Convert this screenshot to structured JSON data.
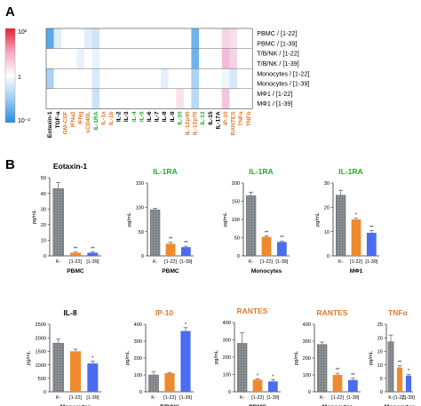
{
  "panel_a": {
    "label": "A",
    "scale": {
      "top": "10²",
      "mid": "1",
      "bottom": "10⁻²"
    },
    "rows": [
      "PBMC / [1-22]",
      "PBMC / [1-39]",
      "T/B/NK / [1-22]",
      "T/B/NK / [1-39]",
      "Monocytes / [1-22]",
      "Monocytes / [1-39]",
      "MΦ1 / [1-22]",
      "MΦ1 / [1-39]"
    ],
    "columns": [
      {
        "name": "Eotaxin-1",
        "color": "#000000"
      },
      {
        "name": "TGF-a",
        "color": "#000000"
      },
      {
        "name": "GM-CSF",
        "color": "#e07b2a"
      },
      {
        "name": "IFNa2",
        "color": "#e07b2a"
      },
      {
        "name": "IFNg",
        "color": "#e07b2a"
      },
      {
        "name": "sCD40L",
        "color": "#e07b2a"
      },
      {
        "name": "IL-1RA",
        "color": "#2aa62a"
      },
      {
        "name": "IL-1a",
        "color": "#e07b2a"
      },
      {
        "name": "IL-1b",
        "color": "#e07b2a"
      },
      {
        "name": "IL-2",
        "color": "#000000"
      },
      {
        "name": "IL-3",
        "color": "#000000"
      },
      {
        "name": "IL-4",
        "color": "#2aa62a"
      },
      {
        "name": "IL-5",
        "color": "#2aa62a"
      },
      {
        "name": "IL-6",
        "color": "#000000"
      },
      {
        "name": "IL-7",
        "color": "#000000"
      },
      {
        "name": "IL-8",
        "color": "#000000"
      },
      {
        "name": "IL-9",
        "color": "#000000"
      },
      {
        "name": "IL-10",
        "color": "#2aa62a"
      },
      {
        "name": "IL-12p40",
        "color": "#e07b2a"
      },
      {
        "name": "IL-12p70",
        "color": "#e07b2a"
      },
      {
        "name": "IL-13",
        "color": "#2aa62a"
      },
      {
        "name": "IL-15",
        "color": "#000000"
      },
      {
        "name": "IL-17A",
        "color": "#000000"
      },
      {
        "name": "IP-10",
        "color": "#e07b2a"
      },
      {
        "name": "RANTES",
        "color": "#e07b2a"
      },
      {
        "name": "TNFa",
        "color": "#e07b2a"
      },
      {
        "name": "TNFb",
        "color": "#e07b2a"
      }
    ],
    "heat": [
      [
        "#5aa9ea",
        "#dceefb",
        "#ffffff",
        "#ffffff",
        "#ffffff",
        "#dfeefa",
        "#cfe6f8",
        "#ffffff",
        "#ffffff",
        "#ffffff",
        "#ffffff",
        "#ffffff",
        "#ffffff",
        "#ffffff",
        "#ffffff",
        "#ffffff",
        "#ffffff",
        "#ffffff",
        "#ffffff",
        "#6fb3ec",
        "#ffffff",
        "#ffffff",
        "#ffffff",
        "#f6d4e6",
        "#f8dfeb",
        "#ffffff",
        "#ffffff"
      ],
      [
        "#5aa9ea",
        "#dceefb",
        "#ffffff",
        "#ffffff",
        "#ffffff",
        "#dfeefa",
        "#cfe6f8",
        "#ffffff",
        "#ffffff",
        "#ffffff",
        "#ffffff",
        "#ffffff",
        "#ffffff",
        "#ffffff",
        "#ffffff",
        "#ffffff",
        "#ffffff",
        "#ffffff",
        "#ffffff",
        "#6fb3ec",
        "#ffffff",
        "#ffffff",
        "#ffffff",
        "#f6d4e6",
        "#f8dfeb",
        "#ffffff",
        "#ffffff"
      ],
      [
        "#ffffff",
        "#ffffff",
        "#ffffff",
        "#ffffff",
        "#e7f2fb",
        "#ffffff",
        "#e9f3fb",
        "#ffffff",
        "#ffffff",
        "#ffffff",
        "#ffffff",
        "#ffffff",
        "#ffffff",
        "#ffffff",
        "#ffffff",
        "#ffffff",
        "#ffffff",
        "#ffffff",
        "#ffffff",
        "#6fb3ec",
        "#ffffff",
        "#ffffff",
        "#ffffff",
        "#f2bcd8",
        "#f6d2e4",
        "#ffffff",
        "#ffffff"
      ],
      [
        "#ffffff",
        "#ffffff",
        "#ffffff",
        "#ffffff",
        "#e7f2fb",
        "#ffffff",
        "#e9f3fb",
        "#ffffff",
        "#ffffff",
        "#ffffff",
        "#ffffff",
        "#ffffff",
        "#ffffff",
        "#ffffff",
        "#ffffff",
        "#ffffff",
        "#ffffff",
        "#ffffff",
        "#ffffff",
        "#6fb3ec",
        "#ffffff",
        "#ffffff",
        "#ffffff",
        "#f2bcd8",
        "#f6d2e4",
        "#ffffff",
        "#ffffff"
      ],
      [
        "#a9d2f3",
        "#ffffff",
        "#ffffff",
        "#ffffff",
        "#ffffff",
        "#ffffff",
        "#d7eaf9",
        "#ffffff",
        "#ffffff",
        "#ffffff",
        "#ffffff",
        "#ffffff",
        "#ffffff",
        "#ffffff",
        "#ffffff",
        "#e3f0fb",
        "#ffffff",
        "#ffffff",
        "#ffffff",
        "#a9d2f3",
        "#ffffff",
        "#ffffff",
        "#ffffff",
        "#eef6fc",
        "#d4e8f8",
        "#ffffff",
        "#ffffff"
      ],
      [
        "#a9d2f3",
        "#ffffff",
        "#ffffff",
        "#ffffff",
        "#ffffff",
        "#ffffff",
        "#d7eaf9",
        "#ffffff",
        "#ffffff",
        "#ffffff",
        "#ffffff",
        "#ffffff",
        "#ffffff",
        "#ffffff",
        "#ffffff",
        "#e3f0fb",
        "#ffffff",
        "#ffffff",
        "#ffffff",
        "#a9d2f3",
        "#ffffff",
        "#ffffff",
        "#ffffff",
        "#eef6fc",
        "#d4e8f8",
        "#ffffff",
        "#ffffff"
      ],
      [
        "#ffffff",
        "#ffffff",
        "#ffffff",
        "#ffffff",
        "#ffffff",
        "#ffffff",
        "#c8e2f7",
        "#ffffff",
        "#ffffff",
        "#ffffff",
        "#ffffff",
        "#ffffff",
        "#ffffff",
        "#ffffff",
        "#ffffff",
        "#ffffff",
        "#ffffff",
        "#f9e2ee",
        "#ffffff",
        "#b8daf4",
        "#ffffff",
        "#ffffff",
        "#ffffff",
        "#f3c6dd",
        "#ffffff",
        "#ffffff",
        "#ffffff"
      ],
      [
        "#ffffff",
        "#ffffff",
        "#ffffff",
        "#ffffff",
        "#ffffff",
        "#ffffff",
        "#c8e2f7",
        "#ffffff",
        "#ffffff",
        "#ffffff",
        "#ffffff",
        "#ffffff",
        "#ffffff",
        "#ffffff",
        "#ffffff",
        "#ffffff",
        "#ffffff",
        "#f9e2ee",
        "#ffffff",
        "#b8daf4",
        "#ffffff",
        "#ffffff",
        "#ffffff",
        "#f3c6dd",
        "#ffffff",
        "#ffffff",
        "#ffffff"
      ]
    ]
  },
  "panel_b": {
    "label": "B",
    "bar_colors": {
      "K-": "#8a8f94",
      "[1-22]": "#ee8a2d",
      "[1-39]": "#4a6cf0"
    },
    "ylabel": "pg/mL"
  },
  "chart_data": [
    {
      "type": "bar",
      "title": "Eotaxin-1",
      "title_color": "#000000",
      "xlabel": "PBMC",
      "ylabel": "pg/mL",
      "categories": [
        "K-",
        "[1-22]",
        "[1-39]"
      ],
      "values": [
        43,
        2,
        2
      ],
      "errors": [
        4,
        0.5,
        0.5
      ],
      "sig": [
        "",
        "**",
        "**"
      ],
      "ylim": [
        0,
        50
      ],
      "yticks": [
        0,
        10,
        20,
        30,
        40,
        50
      ]
    },
    {
      "type": "bar",
      "title": "IL-1RA",
      "title_color": "#2aa62a",
      "xlabel": "PBMC",
      "ylabel": "pg/mL",
      "categories": [
        "K-",
        "[1-22]",
        "[1-39]"
      ],
      "values": [
        95,
        25,
        18
      ],
      "errors": [
        3,
        3,
        2
      ],
      "sig": [
        "",
        "**",
        "**"
      ],
      "ylim": [
        0,
        150
      ],
      "yticks": [
        0,
        50,
        100,
        150
      ]
    },
    {
      "type": "bar",
      "title": "IL-1RA",
      "title_color": "#2aa62a",
      "xlabel": "Monocytes",
      "ylabel": "pg/mL",
      "categories": [
        "K-",
        "[1-22]",
        "[1-39]"
      ],
      "values": [
        165,
        52,
        38
      ],
      "errors": [
        10,
        3,
        3
      ],
      "sig": [
        "",
        "**",
        "**"
      ],
      "ylim": [
        0,
        200
      ],
      "yticks": [
        0,
        50,
        100,
        150,
        200
      ]
    },
    {
      "type": "bar",
      "title": "IL-1RA",
      "title_color": "#2aa62a",
      "xlabel": "MΦ1",
      "ylabel": "pg/mL",
      "categories": [
        "K-",
        "[1-22]",
        "[1-39]"
      ],
      "values": [
        25,
        15,
        9.5
      ],
      "errors": [
        2,
        0.5,
        1
      ],
      "sig": [
        "",
        "*",
        "**"
      ],
      "ylim": [
        0,
        30
      ],
      "yticks": [
        0,
        10,
        20,
        30
      ]
    },
    {
      "type": "bar",
      "title": "IL-8",
      "title_color": "#000000",
      "xlabel": "Monocytes",
      "ylabel": "pg/mL",
      "categories": [
        "K-",
        "[1-22]",
        "[1-39]"
      ],
      "values": [
        1800,
        1500,
        1050
      ],
      "errors": [
        150,
        80,
        80
      ],
      "sig": [
        "",
        "",
        "*"
      ],
      "ylim": [
        0,
        2500
      ],
      "yticks": [
        0,
        500,
        1000,
        1500,
        2000,
        2500
      ]
    },
    {
      "type": "bar",
      "title": "IP-10",
      "title_color": "#e07b2a",
      "xlabel": "T/B/NK",
      "ylabel": "pg/mL",
      "categories": [
        "K-",
        "[1-22]",
        "[1-39]"
      ],
      "values": [
        100,
        110,
        360
      ],
      "errors": [
        20,
        5,
        20
      ],
      "sig": [
        "",
        "",
        "*"
      ],
      "ylim": [
        0,
        400
      ],
      "yticks": [
        0,
        100,
        200,
        300,
        400
      ]
    },
    {
      "type": "bar",
      "title": "RANTES",
      "title_color": "#e07b2a",
      "xlabel": "PBMC",
      "ylabel": "pg/mL",
      "categories": [
        "K-",
        "[1-22]",
        "[1-39]"
      ],
      "values": [
        280,
        70,
        60
      ],
      "errors": [
        60,
        5,
        10
      ],
      "sig": [
        "",
        "*",
        "*"
      ],
      "ylim": [
        0,
        400
      ],
      "yticks": [
        0,
        100,
        200,
        300,
        400
      ]
    },
    {
      "type": "bar",
      "title": "RANTES",
      "title_color": "#e07b2a",
      "xlabel": "Monocytes",
      "ylabel": "pg/mL",
      "categories": [
        "K-",
        "[1-22]",
        "[1-39]"
      ],
      "values": [
        280,
        100,
        70
      ],
      "errors": [
        15,
        10,
        10
      ],
      "sig": [
        "",
        "**",
        "**"
      ],
      "ylim": [
        0,
        400
      ],
      "yticks": [
        0,
        100,
        200,
        300,
        400
      ]
    },
    {
      "type": "bar",
      "title": "TNFα",
      "title_color": "#e07b2a",
      "xlabel": "Monocytes",
      "ylabel": "pg/mL",
      "categories": [
        "K-",
        "[1-22]",
        "[1-39]"
      ],
      "values": [
        18.5,
        9,
        6
      ],
      "errors": [
        2.5,
        0.7,
        0.5
      ],
      "sig": [
        "",
        "**",
        "*"
      ],
      "ylim": [
        0,
        25
      ],
      "yticks": [
        0,
        5,
        10,
        15,
        20,
        25
      ]
    }
  ]
}
